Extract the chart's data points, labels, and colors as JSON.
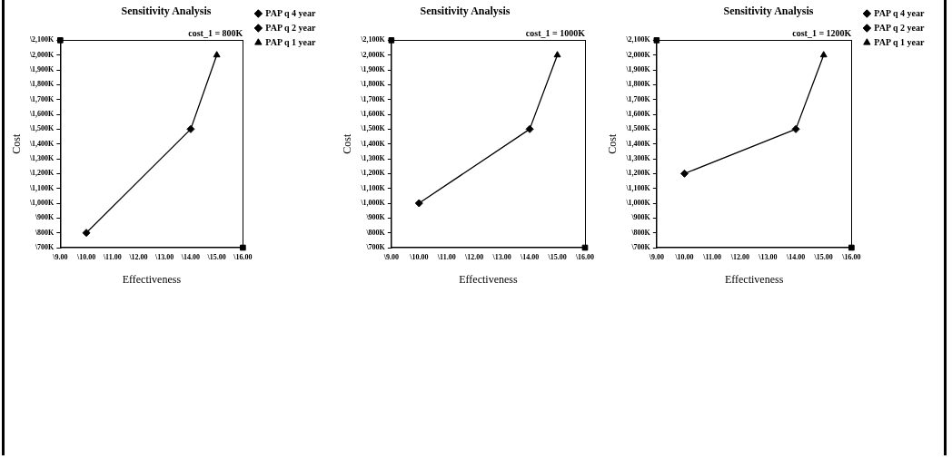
{
  "chart_data": [
    {
      "type": "scatter",
      "title": "Sensitivity Analysis",
      "xlabel": "Effectiveness",
      "ylabel": "Cost",
      "annotations": [
        "cost_1 = 800K"
      ],
      "legend": "right",
      "grid": false,
      "xlim": [
        9,
        16
      ],
      "xticks": [
        {
          "value": 9,
          "label": "\\9.00"
        },
        {
          "value": 10,
          "label": "\\10.00"
        },
        {
          "value": 11,
          "label": "\\11.00"
        },
        {
          "value": 12,
          "label": "\\12.00"
        },
        {
          "value": 13,
          "label": "\\13.00"
        },
        {
          "value": 14,
          "label": "\\14.00"
        },
        {
          "value": 15,
          "label": "\\15.00"
        },
        {
          "value": 16,
          "label": "\\16.00"
        }
      ],
      "ylim": [
        700,
        2100
      ],
      "yticks": [
        {
          "value": 700,
          "label": "\\700K"
        },
        {
          "value": 800,
          "label": "\\800K"
        },
        {
          "value": 900,
          "label": "\\900K"
        },
        {
          "value": 1000,
          "label": "\\1,000K"
        },
        {
          "value": 1100,
          "label": "\\1,100K"
        },
        {
          "value": 1200,
          "label": "\\1,200K"
        },
        {
          "value": 1300,
          "label": "\\1,300K"
        },
        {
          "value": 1400,
          "label": "\\1,400K"
        },
        {
          "value": 1500,
          "label": "\\1,500K"
        },
        {
          "value": 1600,
          "label": "\\1,600K"
        },
        {
          "value": 1700,
          "label": "\\1,700K"
        },
        {
          "value": 1800,
          "label": "\\1,800K"
        },
        {
          "value": 1900,
          "label": "\\1,900K"
        },
        {
          "value": 2000,
          "label": "\\2,000K"
        },
        {
          "value": 2100,
          "label": "\\2,100K"
        }
      ],
      "series": [
        {
          "type": "line",
          "color": "#000000",
          "marker": "none",
          "x": [
            10,
            14,
            15
          ],
          "values": [
            800,
            1500,
            2000
          ]
        },
        {
          "color": "#000000",
          "marker": "square",
          "x": [
            9,
            16
          ],
          "values": [
            2100,
            700
          ]
        },
        {
          "name": "PAP q 4 year",
          "color": "#000000",
          "marker": "diamond",
          "x": [
            10
          ],
          "values": [
            800
          ]
        },
        {
          "name": "PAP q 2 year",
          "color": "#000000",
          "marker": "diamond",
          "x": [
            14
          ],
          "values": [
            1500
          ]
        },
        {
          "name": "PAP q 1 year",
          "color": "#000000",
          "marker": "triangle",
          "x": [
            15
          ],
          "values": [
            2000
          ]
        }
      ]
    },
    {
      "type": "scatter",
      "title": "Sensitivity Analysis",
      "xlabel": "Effectiveness",
      "ylabel": "Cost",
      "annotations": [
        "cost_1 = 1000K"
      ],
      "grid": false,
      "xlim": [
        9,
        16
      ],
      "xticks": [
        {
          "value": 9,
          "label": "\\9.00"
        },
        {
          "value": 10,
          "label": "\\10.00"
        },
        {
          "value": 11,
          "label": "\\11.00"
        },
        {
          "value": 12,
          "label": "\\12.00"
        },
        {
          "value": 13,
          "label": "\\13.00"
        },
        {
          "value": 14,
          "label": "\\14.00"
        },
        {
          "value": 15,
          "label": "\\15.00"
        },
        {
          "value": 16,
          "label": "\\16.00"
        }
      ],
      "ylim": [
        700,
        2100
      ],
      "yticks": [
        {
          "value": 700,
          "label": "\\700K"
        },
        {
          "value": 800,
          "label": "\\800K"
        },
        {
          "value": 900,
          "label": "\\900K"
        },
        {
          "value": 1000,
          "label": "\\1,000K"
        },
        {
          "value": 1100,
          "label": "\\1,100K"
        },
        {
          "value": 1200,
          "label": "\\1,200K"
        },
        {
          "value": 1300,
          "label": "\\1,300K"
        },
        {
          "value": 1400,
          "label": "\\1,400K"
        },
        {
          "value": 1500,
          "label": "\\1,500K"
        },
        {
          "value": 1600,
          "label": "\\1,600K"
        },
        {
          "value": 1700,
          "label": "\\1,700K"
        },
        {
          "value": 1800,
          "label": "\\1,800K"
        },
        {
          "value": 1900,
          "label": "\\1,900K"
        },
        {
          "value": 2000,
          "label": "\\2,000K"
        },
        {
          "value": 2100,
          "label": "\\2,100K"
        }
      ],
      "series": [
        {
          "type": "line",
          "color": "#000000",
          "marker": "none",
          "x": [
            10,
            14,
            15
          ],
          "values": [
            1000,
            1500,
            2000
          ]
        },
        {
          "color": "#000000",
          "marker": "square",
          "x": [
            9,
            16
          ],
          "values": [
            2100,
            700
          ]
        },
        {
          "color": "#000000",
          "marker": "diamond",
          "x": [
            10
          ],
          "values": [
            1000
          ]
        },
        {
          "color": "#000000",
          "marker": "diamond",
          "x": [
            14
          ],
          "values": [
            1500
          ]
        },
        {
          "color": "#000000",
          "marker": "triangle",
          "x": [
            15
          ],
          "values": [
            2000
          ]
        }
      ]
    },
    {
      "type": "scatter",
      "title": "Sensitivity Analysis",
      "xlabel": "Effectiveness",
      "ylabel": "Cost",
      "annotations": [
        "cost_1 = 1200K"
      ],
      "legend": "right",
      "grid": false,
      "xlim": [
        9,
        16
      ],
      "xticks": [
        {
          "value": 9,
          "label": "\\9.00"
        },
        {
          "value": 10,
          "label": "\\10.00"
        },
        {
          "value": 11,
          "label": "\\11.00"
        },
        {
          "value": 12,
          "label": "\\12.00"
        },
        {
          "value": 13,
          "label": "\\13.00"
        },
        {
          "value": 14,
          "label": "\\14.00"
        },
        {
          "value": 15,
          "label": "\\15.00"
        },
        {
          "value": 16,
          "label": "\\16.00"
        }
      ],
      "ylim": [
        700,
        2100
      ],
      "yticks": [
        {
          "value": 700,
          "label": "\\700K"
        },
        {
          "value": 800,
          "label": "\\800K"
        },
        {
          "value": 900,
          "label": "\\900K"
        },
        {
          "value": 1000,
          "label": "\\1,000K"
        },
        {
          "value": 1100,
          "label": "\\1,100K"
        },
        {
          "value": 1200,
          "label": "\\1,200K"
        },
        {
          "value": 1300,
          "label": "\\1,300K"
        },
        {
          "value": 1400,
          "label": "\\1,400K"
        },
        {
          "value": 1500,
          "label": "\\1,500K"
        },
        {
          "value": 1600,
          "label": "\\1,600K"
        },
        {
          "value": 1700,
          "label": "\\1,700K"
        },
        {
          "value": 1800,
          "label": "\\1,800K"
        },
        {
          "value": 1900,
          "label": "\\1,900K"
        },
        {
          "value": 2000,
          "label": "\\2,000K"
        },
        {
          "value": 2100,
          "label": "\\2,100K"
        }
      ],
      "series": [
        {
          "type": "line",
          "color": "#000000",
          "marker": "none",
          "x": [
            10,
            14,
            15
          ],
          "values": [
            1200,
            1500,
            2000
          ]
        },
        {
          "color": "#000000",
          "marker": "square",
          "x": [
            9,
            16
          ],
          "values": [
            2100,
            700
          ]
        },
        {
          "name": "PAP q 4 year",
          "color": "#000000",
          "marker": "diamond",
          "x": [
            10
          ],
          "values": [
            1200
          ]
        },
        {
          "name": "PAP q 2 year",
          "color": "#000000",
          "marker": "diamond",
          "x": [
            14
          ],
          "values": [
            1500
          ]
        },
        {
          "name": "PAP q 1 year",
          "color": "#000000",
          "marker": "triangle",
          "x": [
            15
          ],
          "values": [
            2000
          ]
        }
      ]
    }
  ]
}
